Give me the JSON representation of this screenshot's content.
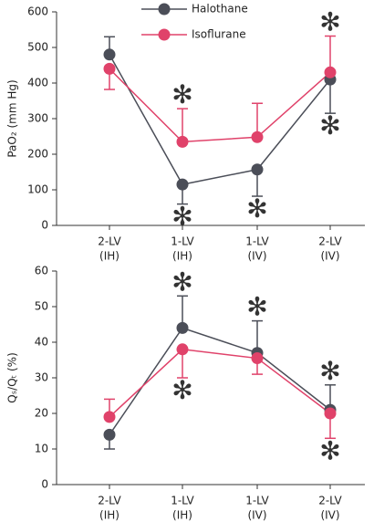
{
  "chart_data": [
    {
      "type": "line",
      "ylabel": "PaO₂ (mm Hg)",
      "categories": [
        [
          "2-LV",
          "(IH)"
        ],
        [
          "1-LV",
          "(IH)"
        ],
        [
          "1-LV",
          "(IV)"
        ],
        [
          "2-LV",
          "(IV)"
        ]
      ],
      "ylim": [
        0,
        600
      ],
      "yticks": [
        0,
        100,
        200,
        300,
        400,
        500,
        600
      ],
      "legend": "top",
      "series": [
        {
          "name": "Halothane",
          "color": "#4b4e58",
          "values": [
            480,
            115,
            157,
            410
          ],
          "errors": [
            50,
            55,
            75,
            95
          ],
          "error_side": [
            "up",
            "down",
            "down",
            "down"
          ]
        },
        {
          "name": "Isoflurane",
          "color": "#e0426a",
          "values": [
            440,
            235,
            248,
            430
          ],
          "errors": [
            58,
            93,
            95,
            102
          ],
          "error_side": [
            "down",
            "up",
            "up",
            "up"
          ]
        }
      ],
      "annotations": [
        {
          "text": "✻",
          "series": 0,
          "index": 1
        },
        {
          "text": "✻",
          "series": 0,
          "index": 2
        },
        {
          "text": "✻",
          "series": 0,
          "index": 3
        },
        {
          "text": "✻",
          "series": 1,
          "index": 1
        },
        {
          "text": "✻",
          "series": 1,
          "index": 3
        }
      ]
    },
    {
      "type": "line",
      "ylabel": "Qₛ/Qₜ (%)",
      "categories": [
        [
          "2-LV",
          "(IH)"
        ],
        [
          "1-LV",
          "(IH)"
        ],
        [
          "1-LV",
          "(IV)"
        ],
        [
          "2-LV",
          "(IV)"
        ]
      ],
      "ylim": [
        0,
        60
      ],
      "yticks": [
        0,
        10,
        20,
        30,
        40,
        50,
        60
      ],
      "series": [
        {
          "color": "#4b4e58",
          "values": [
            14,
            44,
            37,
            21
          ],
          "errors": [
            4,
            9,
            9,
            7
          ],
          "error_side": [
            "down",
            "up",
            "up",
            "up"
          ]
        },
        {
          "color": "#e0426a",
          "values": [
            19,
            38,
            35.5,
            20
          ],
          "errors": [
            5,
            8,
            4.5,
            7
          ],
          "error_side": [
            "up",
            "down",
            "down",
            "down"
          ]
        }
      ],
      "annotations": [
        {
          "text": "✻",
          "series": 0,
          "index": 1
        },
        {
          "text": "✻",
          "series": 0,
          "index": 2
        },
        {
          "text": "✻",
          "series": 0,
          "index": 3
        },
        {
          "text": "✻",
          "series": 1,
          "index": 1
        },
        {
          "text": "✻",
          "series": 1,
          "index": 3
        }
      ]
    }
  ]
}
